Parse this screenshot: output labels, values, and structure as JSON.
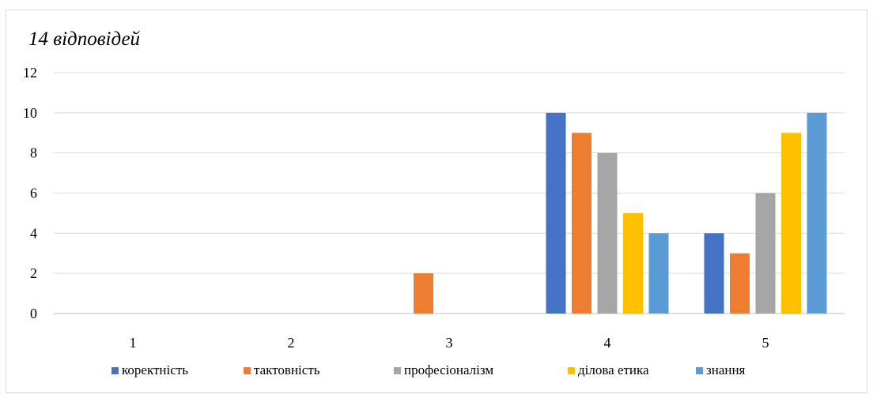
{
  "chart_data": {
    "type": "bar",
    "title": "14 відповідей",
    "categories": [
      "1",
      "2",
      "3",
      "4",
      "5"
    ],
    "series": [
      {
        "name": "коректність",
        "color": "#4472c4",
        "values": [
          0,
          0,
          0,
          10,
          4
        ]
      },
      {
        "name": "тактовність",
        "color": "#ed7d31",
        "values": [
          0,
          0,
          2,
          9,
          3
        ]
      },
      {
        "name": "професіоналізм",
        "color": "#a5a5a5",
        "values": [
          0,
          0,
          0,
          8,
          6
        ]
      },
      {
        "name": "ділова етика",
        "color": "#ffc000",
        "values": [
          0,
          0,
          0,
          5,
          9
        ]
      },
      {
        "name": "знання",
        "color": "#5b9bd5",
        "values": [
          0,
          0,
          0,
          4,
          10
        ]
      }
    ],
    "yticks": [
      "0",
      "2",
      "4",
      "6",
      "8",
      "10",
      "12"
    ],
    "ylim": [
      0,
      12
    ],
    "grid": true,
    "legend": "bottom",
    "xlabel": "",
    "ylabel": ""
  }
}
